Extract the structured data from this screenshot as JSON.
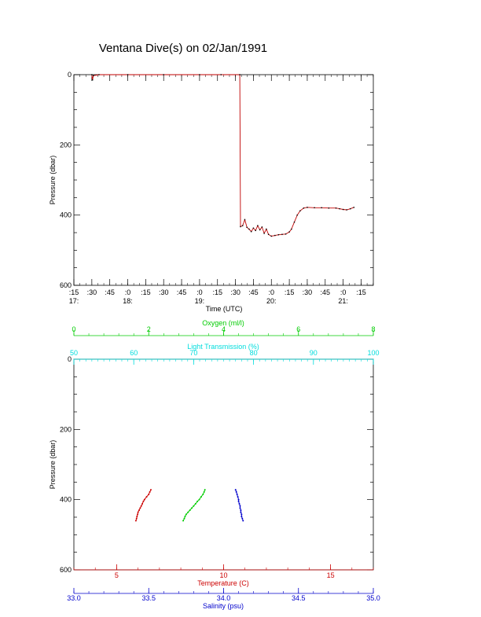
{
  "title": "Ventana Dive(s) on 02/Jan/1991",
  "colors": {
    "axis": "#000000",
    "pressure_trace": "#c00000",
    "pressure_marks": "#000000",
    "oxygen": "#00cc00",
    "light": "#00dddd",
    "temperature": "#cc0000",
    "salinity": "#0000cc"
  },
  "chart_data": [
    {
      "type": "line",
      "xlabel": "Time (UTC)",
      "ylabel": "Pressure (dbar)",
      "ylim": [
        600,
        0
      ],
      "y_ticks": [
        0,
        200,
        400,
        600
      ],
      "x_ticks": [
        {
          "t": 17.25,
          "minute": ":15",
          "hour": "17:"
        },
        {
          "t": 17.5,
          "minute": ":30",
          "hour": ""
        },
        {
          "t": 17.75,
          "minute": ":45",
          "hour": ""
        },
        {
          "t": 18.0,
          "minute": ":0",
          "hour": "18:"
        },
        {
          "t": 18.25,
          "minute": ":15",
          "hour": ""
        },
        {
          "t": 18.5,
          "minute": ":30",
          "hour": ""
        },
        {
          "t": 18.75,
          "minute": ":45",
          "hour": ""
        },
        {
          "t": 19.0,
          "minute": ":0",
          "hour": "19:"
        },
        {
          "t": 19.25,
          "minute": ":15",
          "hour": ""
        },
        {
          "t": 19.5,
          "minute": ":30",
          "hour": ""
        },
        {
          "t": 19.75,
          "minute": ":45",
          "hour": ""
        },
        {
          "t": 20.0,
          "minute": ":0",
          "hour": "20:"
        },
        {
          "t": 20.25,
          "minute": ":15",
          "hour": ""
        },
        {
          "t": 20.5,
          "minute": ":30",
          "hour": ""
        },
        {
          "t": 20.75,
          "minute": ":45",
          "hour": ""
        },
        {
          "t": 21.0,
          "minute": ":0",
          "hour": "21:"
        },
        {
          "t": 21.25,
          "minute": ":15",
          "hour": ""
        }
      ],
      "xlim": [
        17.25,
        21.42
      ],
      "series": [
        {
          "x": [
            17.5,
            17.51,
            17.52,
            17.6,
            18.0,
            18.5,
            19.0,
            19.3,
            19.56,
            19.57,
            19.6,
            19.63,
            19.66,
            19.69,
            19.72,
            19.75,
            19.78,
            19.81,
            19.84,
            19.87,
            19.9,
            19.93,
            19.96,
            20.0,
            20.05,
            20.1,
            20.15,
            20.2,
            20.25,
            20.28,
            20.32,
            20.36,
            20.4,
            20.45,
            20.5,
            20.6,
            20.7,
            20.8,
            20.9,
            20.95,
            21.0,
            21.05,
            21.1,
            21.15
          ],
          "y": [
            0,
            15,
            3,
            0,
            0,
            0,
            0,
            0,
            0,
            433,
            430,
            413,
            435,
            440,
            447,
            437,
            444,
            430,
            442,
            434,
            452,
            440,
            455,
            460,
            458,
            456,
            455,
            454,
            448,
            440,
            420,
            400,
            388,
            380,
            378,
            379,
            379,
            380,
            380,
            382,
            384,
            385,
            382,
            378
          ]
        }
      ]
    },
    {
      "type": "scatter",
      "ylabel": "Pressure (dbar)",
      "ylim": [
        600,
        0
      ],
      "y_ticks": [
        0,
        200,
        400,
        600
      ],
      "axes": {
        "oxygen": {
          "label": "Oxygen (ml/l)",
          "range": [
            0,
            8
          ],
          "ticks": [
            0,
            2,
            4,
            6,
            8
          ]
        },
        "light": {
          "label": "Light Transmission (%)",
          "range": [
            50,
            100
          ],
          "ticks": [
            50,
            60,
            70,
            80,
            90,
            100
          ]
        },
        "temperature": {
          "label": "Temperature (C)",
          "range": [
            3,
            17
          ],
          "ticks": [
            5,
            10,
            15
          ]
        },
        "salinity": {
          "label": "Salinity (psu)",
          "range": [
            33.0,
            35.0
          ],
          "ticks": [
            "33.0",
            "33.5",
            "34.0",
            "34.5",
            "35.0"
          ]
        }
      },
      "series": [
        {
          "variable": "oxygen",
          "x": [
            3.5,
            3.48,
            3.45,
            3.4,
            3.35,
            3.3,
            3.25,
            3.2,
            3.15,
            3.1,
            3.05,
            3.0,
            2.97,
            2.95,
            2.92
          ],
          "y": [
            372,
            378,
            385,
            392,
            400,
            405,
            412,
            418,
            424,
            430,
            436,
            442,
            448,
            454,
            460
          ]
        },
        {
          "variable": "temperature",
          "x": [
            6.6,
            6.55,
            6.5,
            6.4,
            6.3,
            6.25,
            6.2,
            6.15,
            6.1,
            6.05,
            6.0,
            5.98,
            5.95,
            5.93,
            5.9
          ],
          "y": [
            372,
            378,
            385,
            392,
            400,
            405,
            412,
            418,
            424,
            430,
            436,
            442,
            448,
            454,
            460
          ]
        },
        {
          "variable": "salinity",
          "x": [
            34.08,
            34.085,
            34.09,
            34.095,
            34.1,
            34.1,
            34.105,
            34.11,
            34.11,
            34.115,
            34.115,
            34.12,
            34.12,
            34.125,
            34.13
          ],
          "y": [
            372,
            378,
            385,
            392,
            400,
            405,
            412,
            418,
            424,
            430,
            436,
            442,
            448,
            454,
            460
          ]
        }
      ]
    }
  ]
}
